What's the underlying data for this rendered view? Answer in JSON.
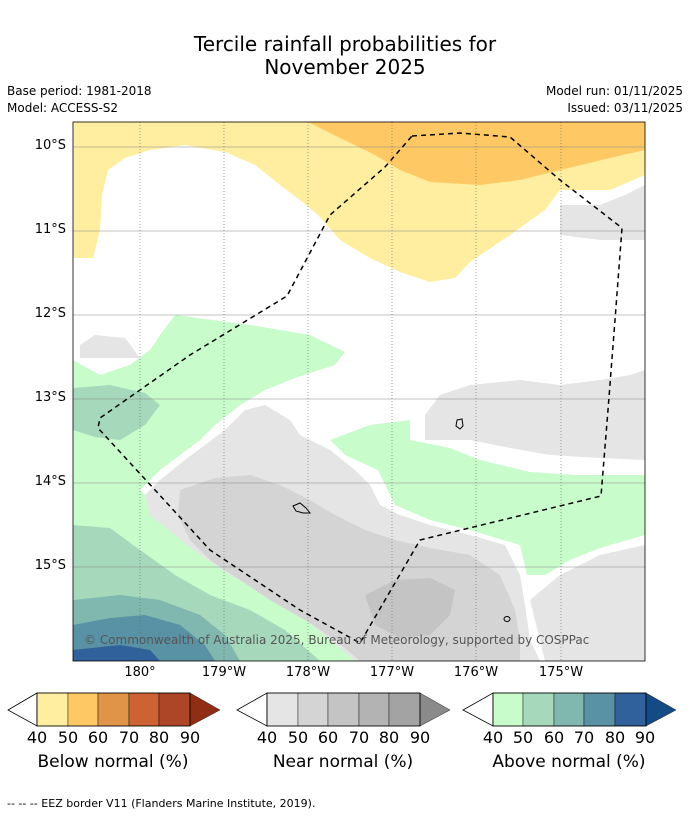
{
  "title_line1": "Tercile rainfall probabilities for",
  "title_line2": "November 2025",
  "meta": {
    "base_period": "Base period: 1981-2018",
    "model": "Model: ACCESS-S2",
    "model_run": "Model run: 01/11/2025",
    "issued": "Issued: 03/11/2025"
  },
  "latitude_labels": [
    "10°S",
    "11°S",
    "12°S",
    "13°S",
    "14°S",
    "15°S"
  ],
  "longitude_labels": [
    "180°",
    "179°W",
    "178°W",
    "177°W",
    "176°W",
    "175°W"
  ],
  "copyright": "© Commonwealth of Australia 2025, Bureau of Meteorology, supported by COSPPac",
  "colorbars": {
    "below": {
      "label": "Below normal (%)",
      "ticks": [
        "40",
        "50",
        "60",
        "70",
        "80",
        "90"
      ],
      "colors": [
        "#ffeea0",
        "#fec965",
        "#e09447",
        "#cd6233",
        "#ad4627",
        "#8f2e15"
      ]
    },
    "near": {
      "label": "Near normal (%)",
      "ticks": [
        "40",
        "50",
        "60",
        "70",
        "80",
        "90"
      ],
      "colors": [
        "#e5e5e5",
        "#d4d4d4",
        "#c4c4c4",
        "#b3b3b3",
        "#a3a3a3",
        "#8a8a8a"
      ]
    },
    "above": {
      "label": "Above normal (%)",
      "ticks": [
        "40",
        "50",
        "60",
        "70",
        "80",
        "90"
      ],
      "colors": [
        "#c8fccb",
        "#a6d8bb",
        "#80b7ae",
        "#5892a4",
        "#31619a",
        "#154b85"
      ]
    }
  },
  "footer": "-- -- -- EEZ border V11 (Flanders Marine Institute, 2019)."
}
